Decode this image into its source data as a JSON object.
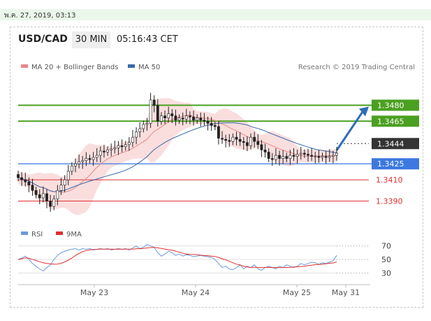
{
  "date_bar": "พ.ค. 27, 2019, 03:13",
  "header": {
    "pair": "USD/CAD",
    "timeframe": "30 MIN",
    "time": "05:16:43 CET"
  },
  "colors": {
    "support": "#3c78e0",
    "resistance": "#4aa020",
    "pivot": "#333333",
    "minor": "#e03030",
    "arrow": "#2f6db5",
    "ma20": "#e88888",
    "ma50": "#3a6aa8",
    "rsi": "#6a9ae0",
    "rsi_ma": "#e03030"
  },
  "chart_data": {
    "type": "candlestick",
    "legend": {
      "ma20": "MA 20 + Bollinger Bands",
      "ma50": "MA 50"
    },
    "credit": "Research © 2019 Trading Central",
    "x_labels": [
      "May 23",
      "May 24",
      "May 25",
      "May 31"
    ],
    "ylim": [
      1.337,
      1.35
    ],
    "close_series": [
      1.3412,
      1.341,
      1.3408,
      1.3405,
      1.34,
      1.3396,
      1.3393,
      1.3397,
      1.339,
      1.3385,
      1.3392,
      1.34,
      1.3405,
      1.341,
      1.3418,
      1.3423,
      1.3425,
      1.3427,
      1.3428,
      1.343,
      1.3429,
      1.3431,
      1.3433,
      1.3437,
      1.3436,
      1.3438,
      1.3439,
      1.344,
      1.3442,
      1.3441,
      1.3443,
      1.3445,
      1.345,
      1.3455,
      1.3458,
      1.3462,
      1.3463,
      1.3485,
      1.348,
      1.3465,
      1.347,
      1.3468,
      1.3472,
      1.347,
      1.3466,
      1.3468,
      1.3467,
      1.347,
      1.3469,
      1.3466,
      1.3468,
      1.3466,
      1.3465,
      1.3463,
      1.3461,
      1.346,
      1.3449,
      1.3448,
      1.3447,
      1.3446,
      1.345,
      1.3448,
      1.3446,
      1.3445,
      1.3442,
      1.345,
      1.3446,
      1.3443,
      1.3438,
      1.3436,
      1.343,
      1.3429,
      1.3433,
      1.343,
      1.3432,
      1.343,
      1.3433,
      1.3432,
      1.3434,
      1.3435,
      1.3434,
      1.3433,
      1.3432,
      1.3432,
      1.3431,
      1.3432,
      1.3431,
      1.3432,
      1.3433,
      1.3435
    ],
    "levels": [
      {
        "label": "1.3480",
        "value": 1.348,
        "kind": "resistance"
      },
      {
        "label": "1.3465",
        "value": 1.3465,
        "kind": "resistance"
      },
      {
        "label": "1.3444",
        "value": 1.3444,
        "kind": "pivot"
      },
      {
        "label": "1.3425",
        "value": 1.3425,
        "kind": "support"
      },
      {
        "label": "1.3410",
        "value": 1.341,
        "kind": "minor"
      },
      {
        "label": "1.3390",
        "value": 1.339,
        "kind": "minor"
      }
    ],
    "rsi": {
      "legend": {
        "rsi": "RSI",
        "ma": "9MA"
      },
      "ticks": [
        "70",
        "50",
        "30"
      ],
      "ylim": [
        20,
        80
      ],
      "values": [
        50,
        52,
        55,
        50,
        44,
        40,
        36,
        33,
        38,
        42,
        50,
        56,
        60,
        62,
        64,
        65,
        66,
        64,
        66,
        65,
        66,
        64,
        65,
        66,
        65,
        66,
        64,
        65,
        66,
        65,
        66,
        64,
        67,
        70,
        66,
        68,
        72,
        70,
        68,
        60,
        55,
        58,
        62,
        60,
        56,
        58,
        55,
        57,
        56,
        54,
        55,
        56,
        55,
        54,
        53,
        50,
        44,
        38,
        40,
        36,
        35,
        38,
        42,
        36,
        40,
        38,
        42,
        36,
        34,
        38,
        40,
        38,
        36,
        40,
        38,
        42,
        40,
        38,
        40,
        44,
        42,
        44,
        46,
        45,
        43,
        45,
        44,
        46,
        48,
        56
      ]
    }
  }
}
